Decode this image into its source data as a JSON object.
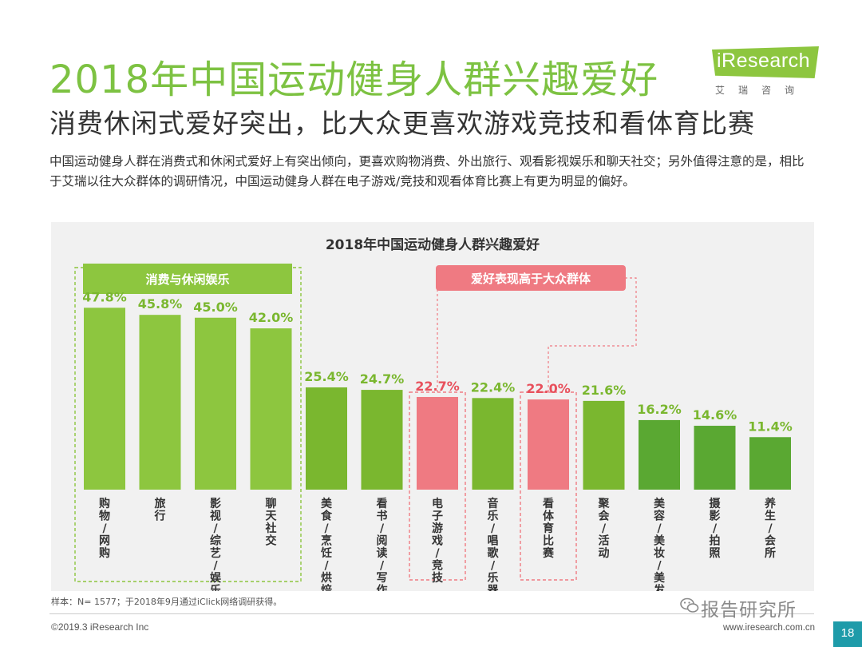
{
  "header": {
    "title": "2018年中国运动健身人群兴趣爱好",
    "subtitle": "消费休闲式爱好突出，比大众更喜欢游戏竞技和看体育比赛",
    "description": "中国运动健身人群在消费式和休闲式爱好上有突出倾向，更喜欢购物消费、外出旅行、观看影视娱乐和聊天社交；另外值得注意的是，相比于艾瑞以往大众群体的调研情况，中国运动健身人群在电子游戏/竞技和观看体育比赛上有更为明显的偏好。"
  },
  "logo": {
    "text": "iResearch",
    "subtext": "艾瑞咨询"
  },
  "chart_data": {
    "type": "bar",
    "title": "2018年中国运动健身人群兴趣爱好",
    "categories": [
      "购物/网购",
      "旅行",
      "影视/综艺/娱乐",
      "聊天社交",
      "美食/烹饪/烘焙",
      "看书/阅读/写作",
      "电子游戏/竞技",
      "音乐/唱歌/乐器",
      "看体育比赛",
      "聚会/活动",
      "美容/美妆/美发",
      "摄影/拍照",
      "养生/会所"
    ],
    "values": [
      47.8,
      45.8,
      45.0,
      42.0,
      25.4,
      24.7,
      22.7,
      22.4,
      22.0,
      21.6,
      16.2,
      14.6,
      11.4
    ],
    "value_labels": [
      "47.8%",
      "45.8%",
      "45.0%",
      "42.0%",
      "25.4%",
      "24.7%",
      "22.7%",
      "22.4%",
      "22.0%",
      "21.6%",
      "16.2%",
      "14.6%",
      "11.4%"
    ],
    "highlight_categories": [
      "电子游戏/竞技",
      "看体育比赛"
    ],
    "group_labels": {
      "leisure": "消费与休闲娱乐",
      "above_public": "爱好表现高于大众群体"
    },
    "unit": "%",
    "ylim": [
      0,
      50
    ],
    "colors": {
      "light": "#8dc63f",
      "mid": "#7ab72f",
      "dark": "#5aa832",
      "highlight": "#ef7a82",
      "highlight_text": "#e8505c",
      "label_text": "#7ab72f"
    }
  },
  "footer": {
    "source": "样本：N= 1577；于2018年9月通过iClick网络调研获得。",
    "copyright": "©2019.3 iResearch Inc",
    "website": "www.iresearch.com.cn",
    "watermark": "报告研究所",
    "page": "18"
  }
}
